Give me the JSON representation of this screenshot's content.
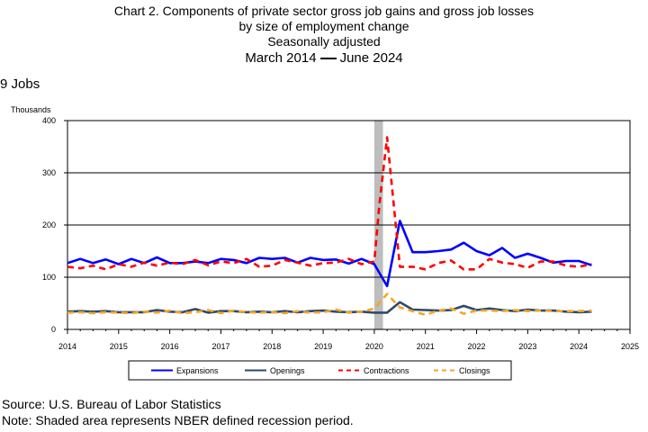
{
  "title": {
    "line1": "Chart 2. Components of private sector gross job gains and gross job losses",
    "line2": "by size of employment change",
    "line3": "Seasonally adjusted",
    "line4_start": "March 2014",
    "line4_end": "June 2024"
  },
  "subtitle": "9 Jobs",
  "units_label": "Thousands",
  "footer": {
    "source": "Source: U.S. Bureau of Labor Statistics",
    "note": "Note: Shaded area represents NBER defined recession period."
  },
  "chart_data": {
    "type": "line",
    "xlim": [
      2014,
      2025
    ],
    "ylim": [
      0,
      400
    ],
    "yticks": [
      0,
      100,
      200,
      300,
      400
    ],
    "xticks": [
      2014,
      2015,
      2016,
      2017,
      2018,
      2019,
      2020,
      2021,
      2022,
      2023,
      2024,
      2025
    ],
    "grid": true,
    "legend_position": "bottom",
    "recession": {
      "start": 2020.0,
      "end": 2020.17,
      "color": "#bdbdbd"
    },
    "series": [
      {
        "name": "Expansions",
        "color": "#0000ff",
        "dash": "solid",
        "points": [
          [
            2014.0,
            127
          ],
          [
            2014.25,
            135
          ],
          [
            2014.5,
            127
          ],
          [
            2014.75,
            134
          ],
          [
            2015.0,
            125
          ],
          [
            2015.25,
            135
          ],
          [
            2015.5,
            127
          ],
          [
            2015.75,
            138
          ],
          [
            2016.0,
            127
          ],
          [
            2016.25,
            127
          ],
          [
            2016.5,
            130
          ],
          [
            2016.75,
            127
          ],
          [
            2017.0,
            135
          ],
          [
            2017.25,
            133
          ],
          [
            2017.5,
            127
          ],
          [
            2017.75,
            137
          ],
          [
            2018.0,
            135
          ],
          [
            2018.25,
            137
          ],
          [
            2018.5,
            128
          ],
          [
            2018.75,
            137
          ],
          [
            2019.0,
            133
          ],
          [
            2019.25,
            134
          ],
          [
            2019.5,
            126
          ],
          [
            2019.75,
            135
          ],
          [
            2020.0,
            125
          ],
          [
            2020.25,
            83
          ],
          [
            2020.5,
            208
          ],
          [
            2020.75,
            148
          ],
          [
            2021.0,
            148
          ],
          [
            2021.25,
            150
          ],
          [
            2021.5,
            153
          ],
          [
            2021.75,
            166
          ],
          [
            2022.0,
            150
          ],
          [
            2022.25,
            142
          ],
          [
            2022.5,
            156
          ],
          [
            2022.75,
            137
          ],
          [
            2023.0,
            145
          ],
          [
            2023.25,
            137
          ],
          [
            2023.5,
            128
          ],
          [
            2023.75,
            131
          ],
          [
            2024.0,
            131
          ],
          [
            2024.25,
            123
          ]
        ]
      },
      {
        "name": "Openings",
        "color": "#2e4a6b",
        "dash": "solid",
        "points": [
          [
            2014.0,
            34
          ],
          [
            2014.25,
            35
          ],
          [
            2014.5,
            34
          ],
          [
            2014.75,
            35
          ],
          [
            2015.0,
            33
          ],
          [
            2015.25,
            33
          ],
          [
            2015.5,
            33
          ],
          [
            2015.75,
            37
          ],
          [
            2016.0,
            34
          ],
          [
            2016.25,
            33
          ],
          [
            2016.5,
            39
          ],
          [
            2016.75,
            32
          ],
          [
            2017.0,
            35
          ],
          [
            2017.25,
            35
          ],
          [
            2017.5,
            33
          ],
          [
            2017.75,
            34
          ],
          [
            2018.0,
            33
          ],
          [
            2018.25,
            35
          ],
          [
            2018.5,
            33
          ],
          [
            2018.75,
            35
          ],
          [
            2019.0,
            36
          ],
          [
            2019.25,
            34
          ],
          [
            2019.5,
            33
          ],
          [
            2019.75,
            34
          ],
          [
            2020.0,
            32
          ],
          [
            2020.25,
            32
          ],
          [
            2020.5,
            52
          ],
          [
            2020.75,
            38
          ],
          [
            2021.0,
            37
          ],
          [
            2021.25,
            36
          ],
          [
            2021.5,
            37
          ],
          [
            2021.75,
            45
          ],
          [
            2022.0,
            37
          ],
          [
            2022.25,
            40
          ],
          [
            2022.5,
            37
          ],
          [
            2022.75,
            35
          ],
          [
            2023.0,
            38
          ],
          [
            2023.25,
            36
          ],
          [
            2023.5,
            36
          ],
          [
            2023.75,
            34
          ],
          [
            2024.0,
            33
          ],
          [
            2024.25,
            34
          ]
        ]
      },
      {
        "name": "Contractions",
        "color": "#ff0000",
        "dash": "dashed",
        "points": [
          [
            2014.0,
            120
          ],
          [
            2014.25,
            117
          ],
          [
            2014.5,
            122
          ],
          [
            2014.75,
            115
          ],
          [
            2015.0,
            125
          ],
          [
            2015.25,
            120
          ],
          [
            2015.5,
            128
          ],
          [
            2015.75,
            122
          ],
          [
            2016.0,
            128
          ],
          [
            2016.25,
            125
          ],
          [
            2016.5,
            133
          ],
          [
            2016.75,
            123
          ],
          [
            2017.0,
            130
          ],
          [
            2017.25,
            127
          ],
          [
            2017.5,
            135
          ],
          [
            2017.75,
            120
          ],
          [
            2018.0,
            122
          ],
          [
            2018.25,
            133
          ],
          [
            2018.5,
            128
          ],
          [
            2018.75,
            122
          ],
          [
            2019.0,
            127
          ],
          [
            2019.25,
            128
          ],
          [
            2019.5,
            135
          ],
          [
            2019.75,
            125
          ],
          [
            2020.0,
            130
          ],
          [
            2020.1,
            240
          ],
          [
            2020.25,
            368
          ],
          [
            2020.5,
            120
          ],
          [
            2020.75,
            120
          ],
          [
            2021.0,
            115
          ],
          [
            2021.25,
            127
          ],
          [
            2021.5,
            132
          ],
          [
            2021.75,
            115
          ],
          [
            2022.0,
            115
          ],
          [
            2022.25,
            135
          ],
          [
            2022.5,
            128
          ],
          [
            2022.75,
            125
          ],
          [
            2023.0,
            118
          ],
          [
            2023.25,
            130
          ],
          [
            2023.5,
            130
          ],
          [
            2023.75,
            122
          ],
          [
            2024.0,
            120
          ],
          [
            2024.25,
            125
          ]
        ]
      },
      {
        "name": "Closings",
        "color": "#f5a623",
        "dash": "dashed",
        "points": [
          [
            2014.0,
            32
          ],
          [
            2014.25,
            33
          ],
          [
            2014.5,
            31
          ],
          [
            2014.75,
            33
          ],
          [
            2015.0,
            32
          ],
          [
            2015.25,
            31
          ],
          [
            2015.5,
            34
          ],
          [
            2015.75,
            32
          ],
          [
            2016.0,
            36
          ],
          [
            2016.25,
            31
          ],
          [
            2016.5,
            33
          ],
          [
            2016.75,
            37
          ],
          [
            2017.0,
            31
          ],
          [
            2017.25,
            36
          ],
          [
            2017.5,
            33
          ],
          [
            2017.75,
            32
          ],
          [
            2018.0,
            33
          ],
          [
            2018.25,
            31
          ],
          [
            2018.5,
            35
          ],
          [
            2018.75,
            32
          ],
          [
            2019.0,
            33
          ],
          [
            2019.25,
            38
          ],
          [
            2019.5,
            32
          ],
          [
            2019.75,
            34
          ],
          [
            2020.0,
            40
          ],
          [
            2020.25,
            68
          ],
          [
            2020.5,
            42
          ],
          [
            2020.75,
            35
          ],
          [
            2021.0,
            28
          ],
          [
            2021.25,
            36
          ],
          [
            2021.5,
            40
          ],
          [
            2021.75,
            30
          ],
          [
            2022.0,
            36
          ],
          [
            2022.25,
            36
          ],
          [
            2022.5,
            35
          ],
          [
            2022.75,
            37
          ],
          [
            2023.0,
            35
          ],
          [
            2023.25,
            36
          ],
          [
            2023.5,
            35
          ],
          [
            2023.75,
            35
          ],
          [
            2024.0,
            35
          ],
          [
            2024.25,
            36
          ]
        ]
      }
    ]
  }
}
